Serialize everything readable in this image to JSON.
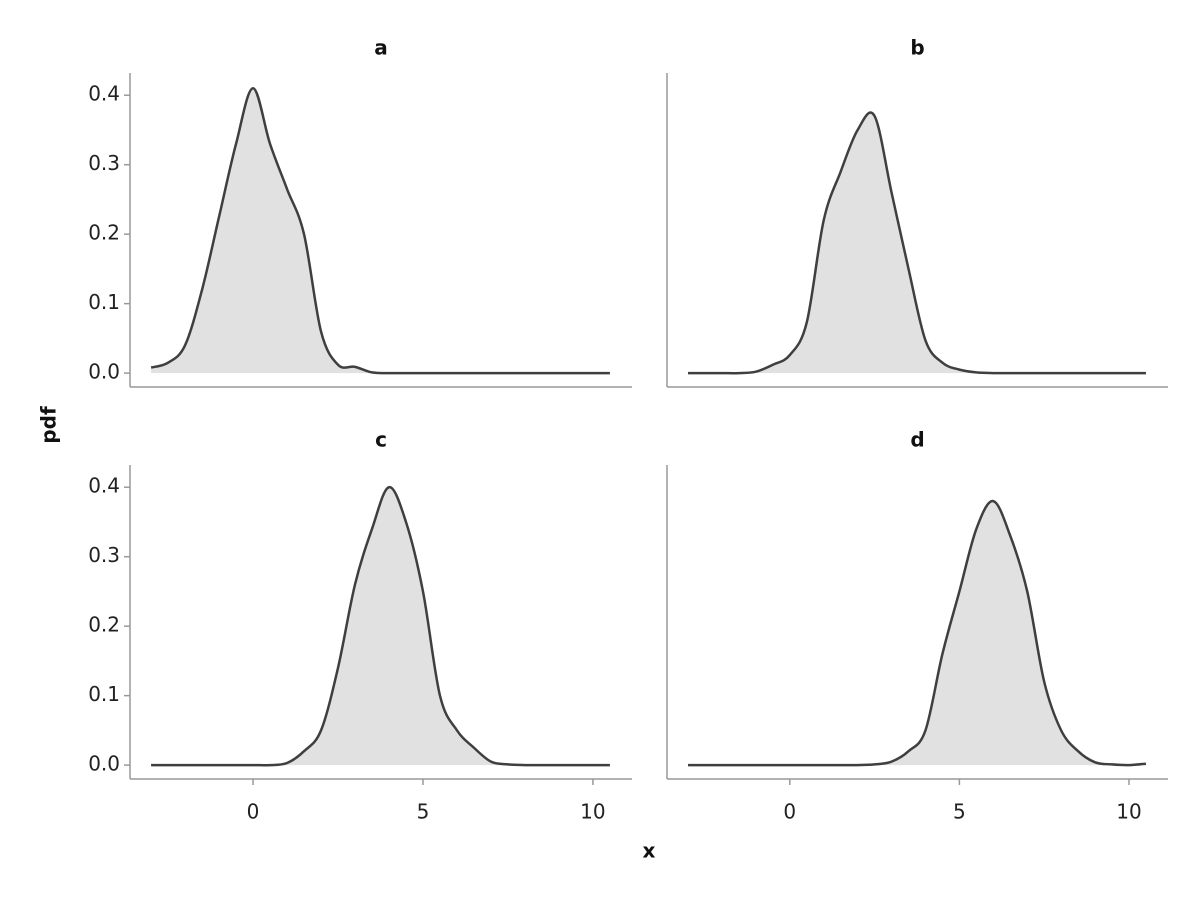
{
  "x_label": "x",
  "y_label": "pdf",
  "chart_data": [
    {
      "type": "area",
      "title": "a",
      "line_color": "#3f3f3f",
      "fill_color": "#e1e1e1",
      "x": [
        -3,
        -2.5,
        -2,
        -1.5,
        -1,
        -0.5,
        0,
        0.5,
        1,
        1.5,
        2,
        2.5,
        3,
        3.5,
        4,
        4.5,
        5,
        5.5,
        6,
        6.5,
        7,
        7.5,
        8,
        8.5,
        9,
        9.5,
        10,
        10.5
      ],
      "values": [
        0.008,
        0.015,
        0.04,
        0.12,
        0.225,
        0.33,
        0.41,
        0.33,
        0.265,
        0.2,
        0.06,
        0.012,
        0.009,
        0.001,
        0,
        0,
        0,
        0,
        0,
        0,
        0,
        0,
        0,
        0,
        0,
        0,
        0,
        0
      ],
      "xlim": [
        -3.62,
        11.15
      ],
      "ylim": [
        -0.02,
        0.432
      ],
      "yticks": [
        {
          "value": 0,
          "label": "0.0"
        },
        0.1,
        0.2,
        0.3,
        0.4
      ]
    },
    {
      "type": "area",
      "title": "b",
      "line_color": "#3f3f3f",
      "fill_color": "#e1e1e1",
      "x": [
        -3,
        -2.5,
        -2,
        -1.5,
        -1,
        -0.5,
        0,
        0.5,
        1,
        1.5,
        2,
        2.5,
        3,
        3.5,
        4,
        4.5,
        5,
        5.5,
        6,
        6.5,
        7,
        7.5,
        8,
        8.5,
        9,
        9.5,
        10,
        10.5
      ],
      "values": [
        0,
        0,
        0,
        0,
        0.002,
        0.012,
        0.026,
        0.073,
        0.22,
        0.29,
        0.35,
        0.37,
        0.26,
        0.15,
        0.047,
        0.015,
        0.005,
        0.001,
        0,
        0,
        0,
        0,
        0,
        0,
        0,
        0,
        0,
        0
      ],
      "xlim": [
        -3.62,
        11.15
      ],
      "ylim": [
        -0.02,
        0.432
      ]
    },
    {
      "type": "area",
      "title": "c",
      "line_color": "#3f3f3f",
      "fill_color": "#e1e1e1",
      "x": [
        -3,
        -2.5,
        -2,
        -1.5,
        -1,
        -0.5,
        0,
        0.5,
        1,
        1.5,
        2,
        2.5,
        3,
        3.5,
        4,
        4.5,
        5,
        5.5,
        6,
        6.5,
        7,
        7.5,
        8,
        8.5,
        9,
        9.5,
        10,
        10.5
      ],
      "values": [
        0,
        0,
        0,
        0,
        0,
        0,
        0,
        0,
        0.003,
        0.02,
        0.05,
        0.14,
        0.26,
        0.34,
        0.4,
        0.35,
        0.25,
        0.1,
        0.05,
        0.025,
        0.005,
        0.001,
        0,
        0,
        0,
        0,
        0,
        0
      ],
      "xlim": [
        -3.62,
        11.15
      ],
      "ylim": [
        -0.02,
        0.432
      ],
      "xticks": [
        0,
        5,
        10
      ],
      "yticks": [
        {
          "value": 0,
          "label": "0.0"
        },
        0.1,
        0.2,
        0.3,
        0.4
      ]
    },
    {
      "type": "area",
      "title": "d",
      "line_color": "#3f3f3f",
      "fill_color": "#e1e1e1",
      "x": [
        -3,
        -2.5,
        -2,
        -1.5,
        -1,
        -0.5,
        0,
        0.5,
        1,
        1.5,
        2,
        2.5,
        3,
        3.5,
        4,
        4.5,
        5,
        5.5,
        6,
        6.5,
        7,
        7.5,
        8,
        8.5,
        9,
        9.5,
        10,
        10.5
      ],
      "values": [
        0,
        0,
        0,
        0,
        0,
        0,
        0,
        0,
        0,
        0,
        0,
        0.001,
        0.005,
        0.02,
        0.05,
        0.16,
        0.25,
        0.34,
        0.38,
        0.33,
        0.25,
        0.12,
        0.05,
        0.02,
        0.004,
        0.001,
        0,
        0.002
      ],
      "xlim": [
        -3.62,
        11.15
      ],
      "ylim": [
        -0.02,
        0.432
      ],
      "xticks": [
        0,
        5,
        10
      ]
    }
  ]
}
